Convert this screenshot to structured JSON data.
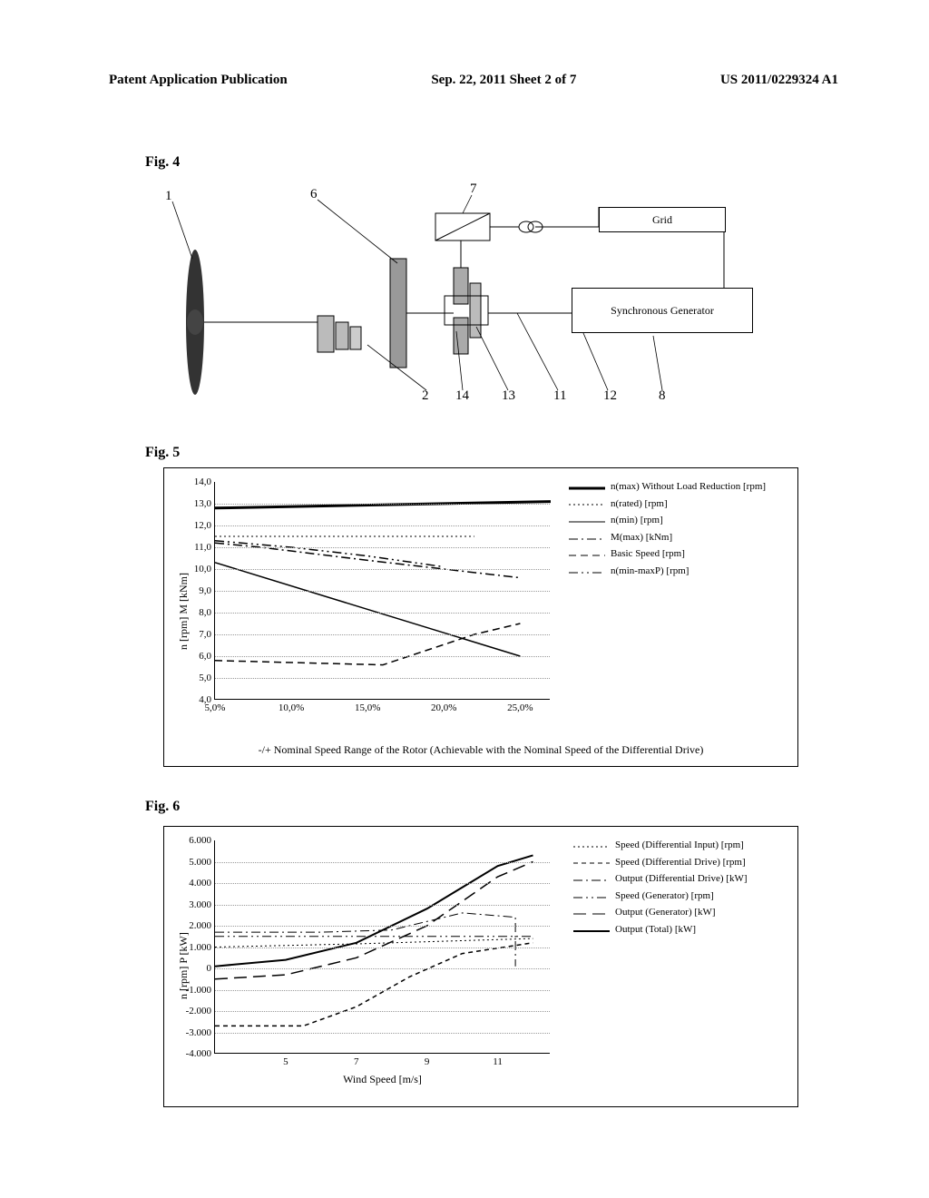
{
  "header": {
    "left": "Patent Application Publication",
    "center": "Sep. 22, 2011  Sheet 2 of 7",
    "right": "US 2011/0229324 A1"
  },
  "fig4": {
    "label": "Fig. 4",
    "callouts": [
      "1",
      "6",
      "7",
      "2",
      "14",
      "13",
      "11",
      "12",
      "8"
    ],
    "grid_label": "Grid",
    "gen_label": "Synchronous Generator"
  },
  "fig5": {
    "label": "Fig. 5",
    "yaxis_label": "n [rpm]   M [kNm]",
    "ymin": 4.0,
    "ymax": 14.0,
    "ytick_step": 1.0,
    "yticks_fmt": [
      "4,0",
      "5,0",
      "6,0",
      "7,0",
      "8,0",
      "9,0",
      "10,0",
      "11,0",
      "12,0",
      "13,0",
      "14,0"
    ],
    "xmin": 5,
    "xmax": 27,
    "xticks": [
      5,
      10,
      15,
      20,
      25
    ],
    "xticks_fmt": [
      "5,0%",
      "10,0%",
      "15,0%",
      "20,0%",
      "25,0%"
    ],
    "caption": "-/+ Nominal Speed Range of the Rotor (Achievable with the Nominal Speed of the Differential Drive)",
    "legend": [
      {
        "label": "n(max) Without Load Reduction [rpm]",
        "style": "solid",
        "w": 3,
        "color": "#000"
      },
      {
        "label": "n(rated) [rpm]",
        "style": "dot",
        "w": 1,
        "color": "#000"
      },
      {
        "label": "n(min) [rpm]",
        "style": "solid",
        "w": 1,
        "color": "#000"
      },
      {
        "label": "M(max) [kNm]",
        "style": "dashdot",
        "w": 1,
        "color": "#000"
      },
      {
        "label": "Basic Speed [rpm]",
        "style": "dash",
        "w": 1,
        "color": "#000"
      },
      {
        "label": "n(min-maxP) [rpm]",
        "style": "dashdotdot",
        "w": 1,
        "color": "#000"
      }
    ],
    "series": {
      "nmax_noLR": {
        "pts": [
          [
            5,
            12.8
          ],
          [
            27,
            13.1
          ]
        ],
        "style": "solid",
        "w": 3
      },
      "nrated": {
        "pts": [
          [
            5,
            11.5
          ],
          [
            22,
            11.5
          ]
        ],
        "style": "dot",
        "w": 1
      },
      "nmin": {
        "pts": [
          [
            5,
            10.3
          ],
          [
            25,
            6.0
          ]
        ],
        "style": "solid",
        "w": 1.5
      },
      "basic": {
        "pts": [
          [
            5,
            5.8
          ],
          [
            16,
            5.6
          ],
          [
            22,
            7.0
          ],
          [
            25,
            7.5
          ]
        ],
        "style": "dash",
        "w": 1.5
      },
      "mmax": {
        "pts": [
          [
            5,
            11.2
          ],
          [
            8,
            11.0
          ],
          [
            15,
            10.4
          ],
          [
            20,
            10.0
          ],
          [
            25,
            9.6
          ]
        ],
        "style": "dashdot",
        "w": 1.5
      },
      "nminmaxp": {
        "pts": [
          [
            5,
            11.3
          ],
          [
            10,
            11.0
          ],
          [
            15,
            10.6
          ],
          [
            20,
            10.1
          ]
        ],
        "style": "dashdotdot",
        "w": 1.5
      }
    }
  },
  "fig6": {
    "label": "Fig. 6",
    "yaxis_label": "n [rpm]   P [kW]",
    "xlabel": "Wind Speed [m/s]",
    "ymin": -4000,
    "ymax": 6000,
    "yticks": [
      -4000,
      -3000,
      -2000,
      -1000,
      0,
      1000,
      2000,
      3000,
      4000,
      5000,
      6000
    ],
    "yticks_fmt": [
      "-4.000",
      "-3.000",
      "-2.000",
      "-1.000",
      "0",
      "1.000",
      "2.000",
      "3.000",
      "4.000",
      "5.000",
      "6.000"
    ],
    "xmin": 3,
    "xmax": 12.5,
    "xticks": [
      5,
      7,
      9,
      11
    ],
    "xticks_fmt": [
      "5",
      "7",
      "9",
      "11"
    ],
    "legend": [
      {
        "label": "Speed (Differential Input) [rpm]",
        "style": "dot",
        "w": 1,
        "color": "#000"
      },
      {
        "label": "Speed (Differential Drive) [rpm]",
        "style": "shortdash",
        "w": 1,
        "color": "#000"
      },
      {
        "label": "Output (Differential Drive) [kW]",
        "style": "dashdot",
        "w": 1,
        "color": "#000"
      },
      {
        "label": "Speed (Generator) [rpm]",
        "style": "dashdotdot",
        "w": 1,
        "color": "#000"
      },
      {
        "label": "Output (Generator) [kW]",
        "style": "longdash",
        "w": 1,
        "color": "#000"
      },
      {
        "label": "Output (Total) [kW]",
        "style": "solid",
        "w": 2,
        "color": "#000"
      }
    ],
    "series": {
      "sp_diff_input": {
        "pts": [
          [
            3,
            1000
          ],
          [
            7,
            1150
          ],
          [
            12,
            1400
          ]
        ],
        "style": "dot",
        "w": 1
      },
      "sp_diff_drive": {
        "pts": [
          [
            3,
            -2700
          ],
          [
            5.5,
            -2700
          ],
          [
            7,
            -1800
          ],
          [
            8.5,
            -400
          ],
          [
            10,
            700
          ],
          [
            12,
            1200
          ]
        ],
        "style": "shortdash",
        "w": 1.5
      },
      "out_diff_drive": {
        "pts": [
          [
            3,
            1700
          ],
          [
            6,
            1700
          ],
          [
            8,
            1800
          ],
          [
            10,
            2600
          ],
          [
            11.5,
            2400
          ],
          [
            11.5,
            100
          ]
        ],
        "style": "dashdot",
        "w": 1
      },
      "sp_gen": {
        "pts": [
          [
            3,
            1500
          ],
          [
            12,
            1500
          ]
        ],
        "style": "dashdotdot",
        "w": 1
      },
      "out_gen": {
        "pts": [
          [
            3,
            -500
          ],
          [
            5,
            -300
          ],
          [
            7,
            500
          ],
          [
            9,
            2000
          ],
          [
            11,
            4300
          ],
          [
            12,
            5000
          ]
        ],
        "style": "longdash",
        "w": 1.5
      },
      "out_total": {
        "pts": [
          [
            3,
            100
          ],
          [
            5,
            400
          ],
          [
            7,
            1200
          ],
          [
            9,
            2800
          ],
          [
            11,
            4800
          ],
          [
            12,
            5300
          ]
        ],
        "style": "solid",
        "w": 2
      }
    }
  }
}
